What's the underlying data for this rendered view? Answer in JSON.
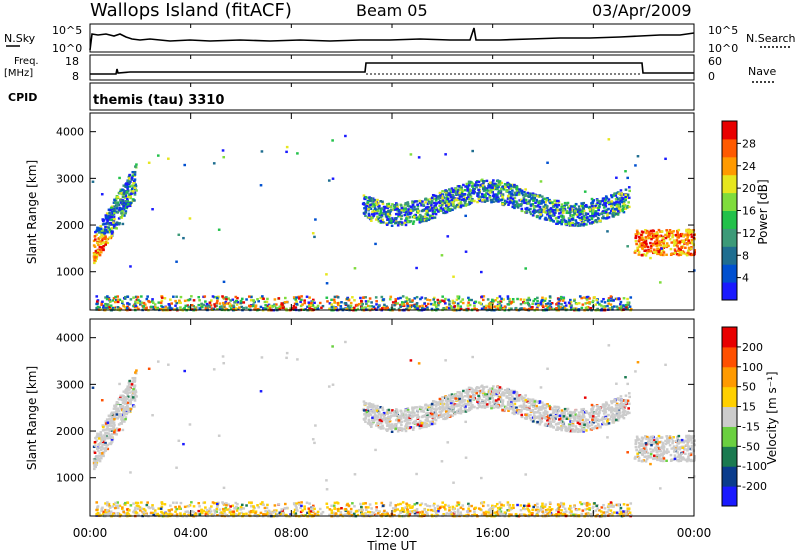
{
  "header": {
    "title": "Wallops Island (fitACF)",
    "beam": "Beam 05",
    "date": "03/Apr/2009"
  },
  "top_panels": {
    "nsky_label": "N.Sky",
    "nsky_ticks": [
      "10^5",
      "10^0"
    ],
    "nsearch_label": "N.Search",
    "nsearch_ticks": [
      "10^5",
      "10^0"
    ],
    "freq_label_1": "Freq.",
    "freq_label_2": "[MHz]",
    "freq_ticks": [
      "18",
      "8"
    ],
    "nave_label": "Nave",
    "nave_ticks": [
      "60",
      "0"
    ],
    "cpid_label": "CPID",
    "cpid_value": "themis (tau) 3310"
  },
  "chart_data": [
    {
      "type": "heatmap",
      "name": "power",
      "ylabel": "Slant Range [km]",
      "yticks": [
        "4000",
        "3000",
        "2000",
        "1000"
      ],
      "ylim": [
        180,
        4400
      ],
      "colorbar_label": "Power [dB]",
      "colorbar_ticks": [
        "28",
        "24",
        "20",
        "16",
        "12",
        "8",
        "4"
      ],
      "colors": [
        "#1a1aff",
        "#0050d0",
        "#1f6e90",
        "#3c9a78",
        "#22c14a",
        "#7fdc3c",
        "#e6e61e",
        "#ff9a00",
        "#ff5a00",
        "#e80000"
      ]
    },
    {
      "type": "heatmap",
      "name": "velocity",
      "ylabel": "Slant Range [km]",
      "yticks": [
        "4000",
        "3000",
        "2000",
        "1000"
      ],
      "ylim": [
        180,
        4400
      ],
      "colorbar_label": "Velocity [m s⁻¹]",
      "colorbar_ticks": [
        "200",
        "100",
        "50",
        "15",
        "-15",
        "-50",
        "-100",
        "-200"
      ],
      "colors": [
        "#1a1aff",
        "#0a3c8c",
        "#1a7a50",
        "#6ad040",
        "#cccccc",
        "#ffd000",
        "#ff9a00",
        "#ff5000",
        "#e80000"
      ]
    }
  ],
  "xaxis": {
    "ticks": [
      "00:00",
      "04:00",
      "08:00",
      "12:00",
      "16:00",
      "20:00",
      "00:00"
    ],
    "label": "Time UT"
  }
}
